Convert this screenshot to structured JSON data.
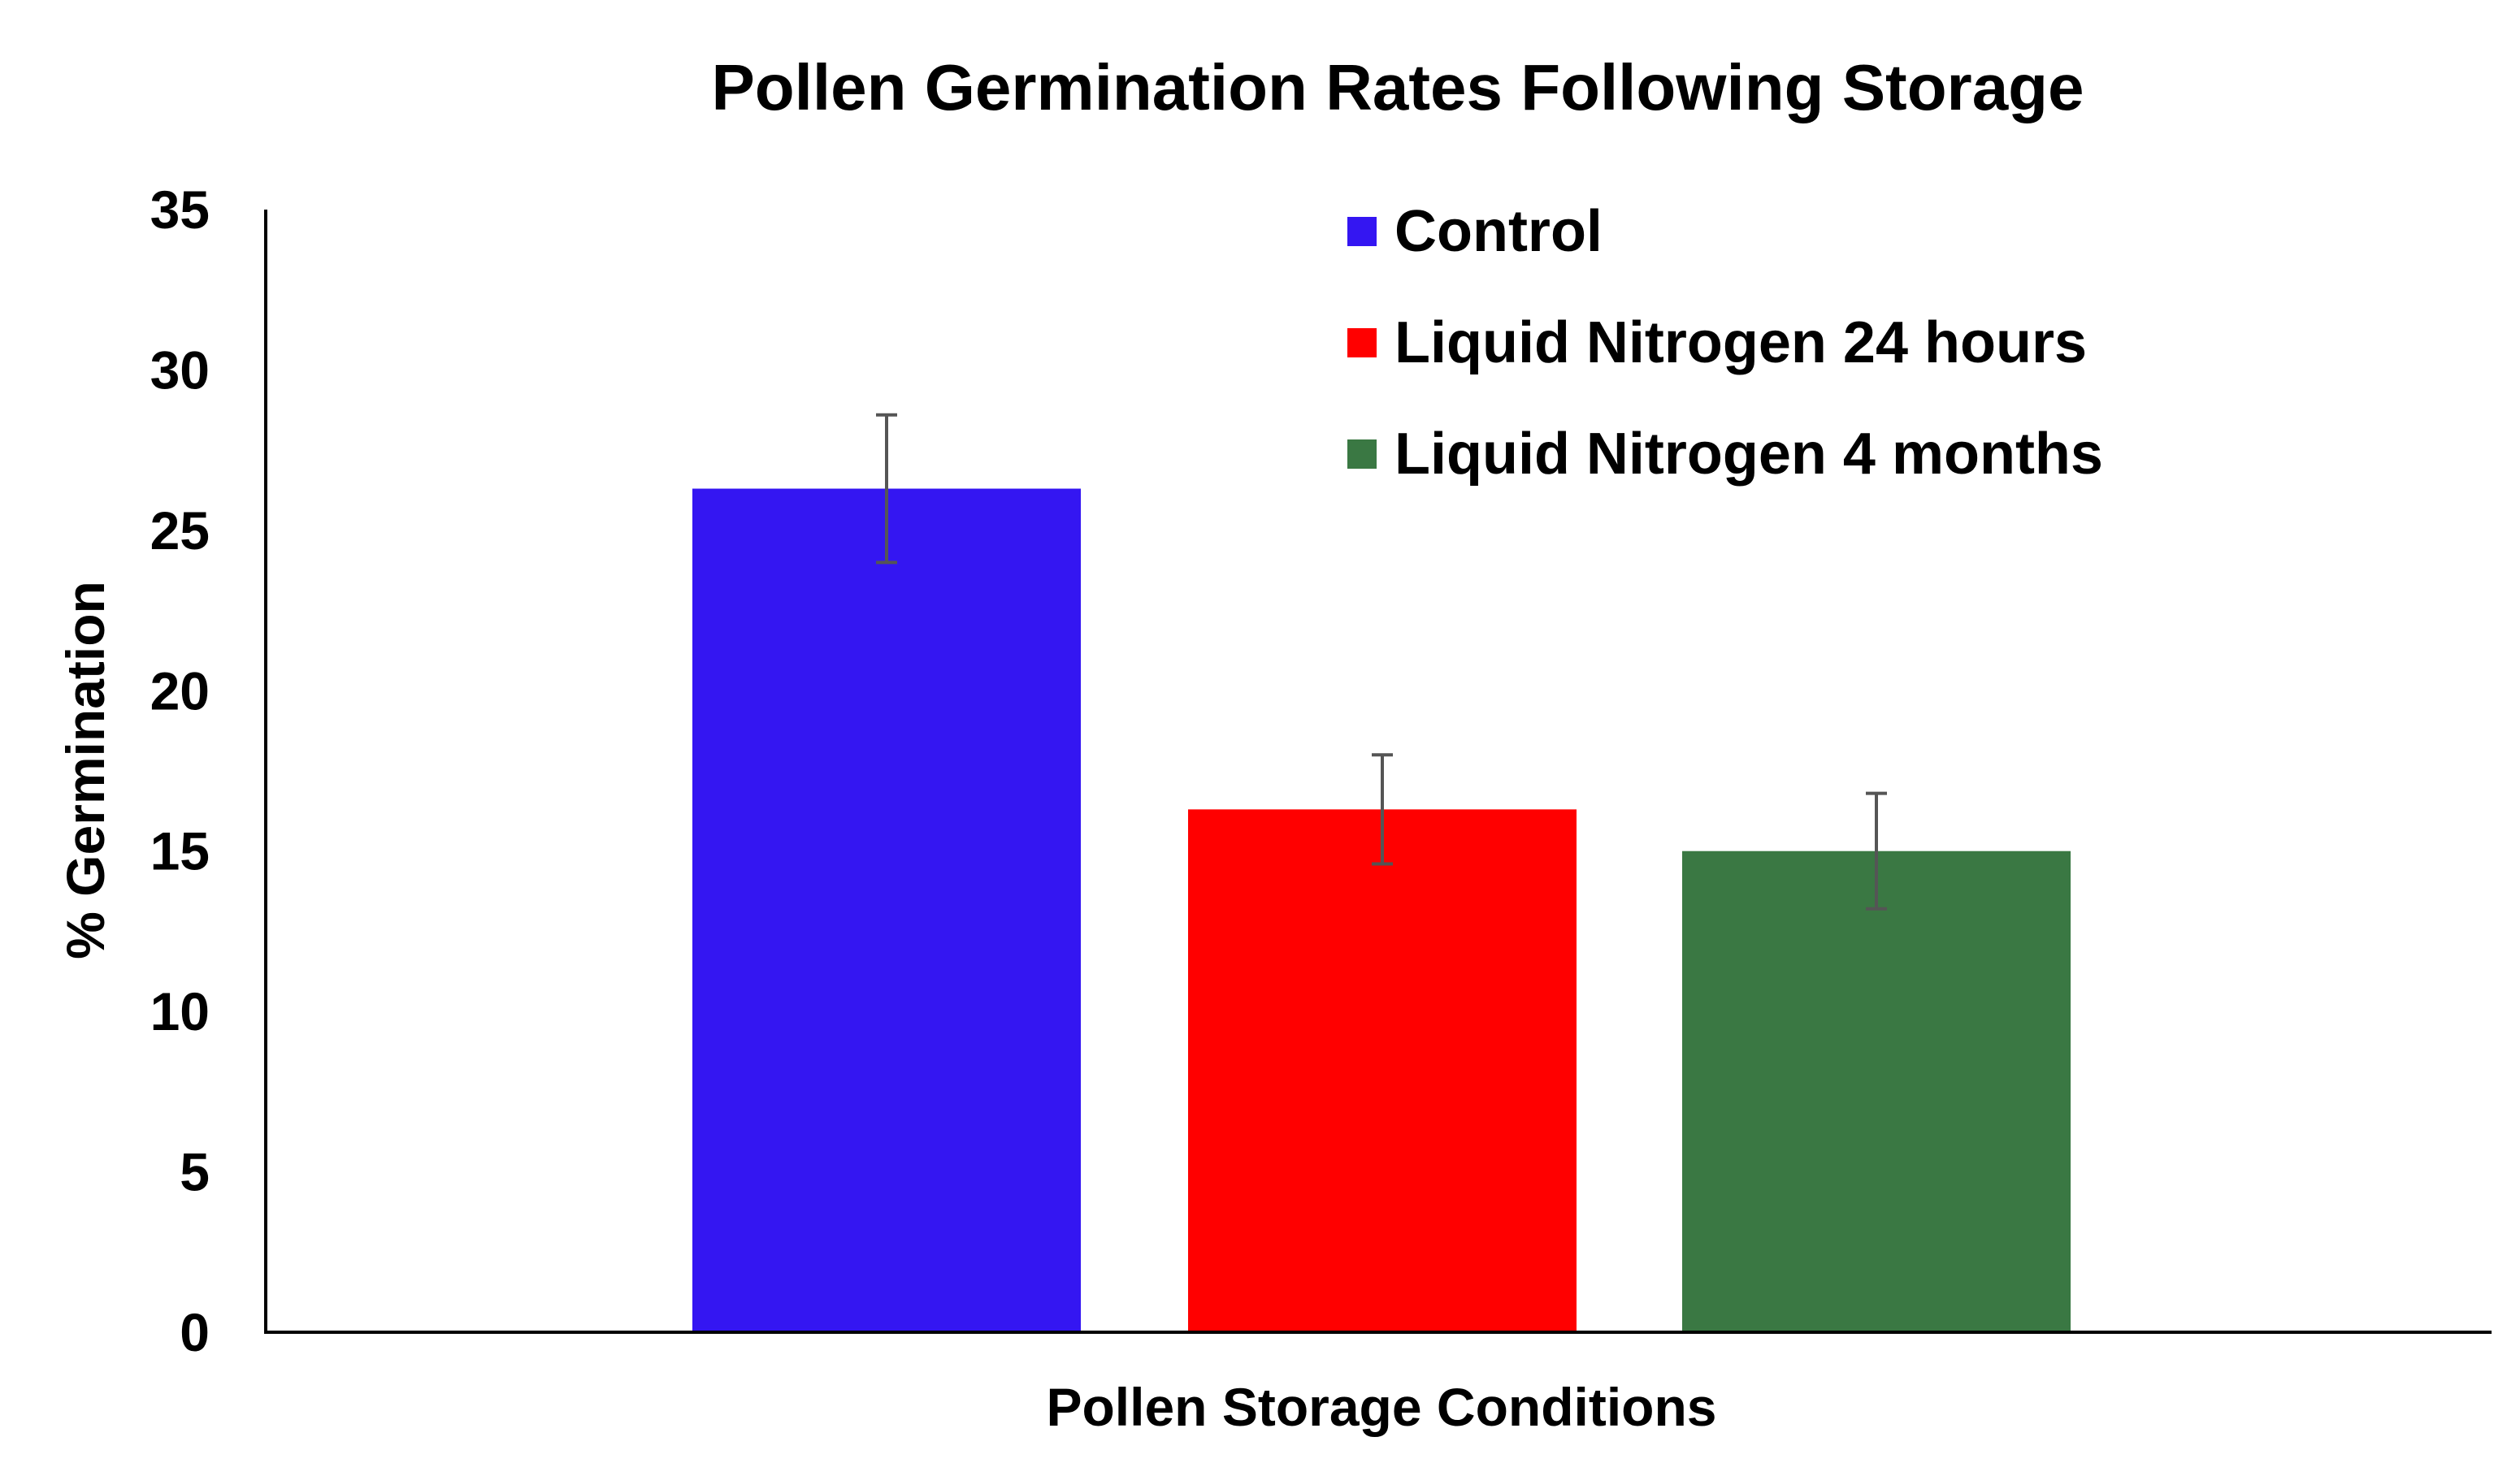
{
  "chart_data": {
    "type": "bar",
    "title": "Pollen Germination Rates Following Storage",
    "xlabel": "Pollen Storage Conditions",
    "ylabel": "% Germination",
    "ylim": [
      0,
      35
    ],
    "yticks": [
      "0",
      "5",
      "10",
      "15",
      "20",
      "25",
      "30",
      "35"
    ],
    "grid": false,
    "legend_position": "top-right",
    "series": [
      {
        "name": "Control",
        "value": 26.3,
        "error": 2.3,
        "color": "#3416F2"
      },
      {
        "name": "Liquid Nitrogen 24 hours",
        "value": 16.3,
        "error": 1.7,
        "color": "#FF0000"
      },
      {
        "name": "Liquid Nitrogen 4 months",
        "value": 15.0,
        "error": 1.8,
        "color": "#3A7843"
      }
    ]
  }
}
